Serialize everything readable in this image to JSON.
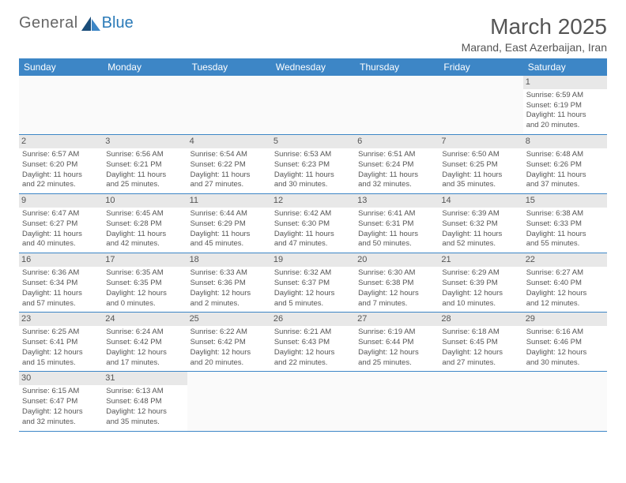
{
  "logo": {
    "text1": "General",
    "text2": "Blue"
  },
  "title": "March 2025",
  "location": "Marand, East Azerbaijan, Iran",
  "colors": {
    "header_bg": "#3d86c6",
    "daynum_bg": "#e8e8e8",
    "text": "#555555",
    "border": "#3d86c6"
  },
  "weekdays": [
    "Sunday",
    "Monday",
    "Tuesday",
    "Wednesday",
    "Thursday",
    "Friday",
    "Saturday"
  ],
  "weeks": [
    [
      {
        "empty": true
      },
      {
        "empty": true
      },
      {
        "empty": true
      },
      {
        "empty": true
      },
      {
        "empty": true
      },
      {
        "empty": true
      },
      {
        "day": "1",
        "sunrise": "Sunrise: 6:59 AM",
        "sunset": "Sunset: 6:19 PM",
        "daylight1": "Daylight: 11 hours",
        "daylight2": "and 20 minutes."
      }
    ],
    [
      {
        "day": "2",
        "sunrise": "Sunrise: 6:57 AM",
        "sunset": "Sunset: 6:20 PM",
        "daylight1": "Daylight: 11 hours",
        "daylight2": "and 22 minutes."
      },
      {
        "day": "3",
        "sunrise": "Sunrise: 6:56 AM",
        "sunset": "Sunset: 6:21 PM",
        "daylight1": "Daylight: 11 hours",
        "daylight2": "and 25 minutes."
      },
      {
        "day": "4",
        "sunrise": "Sunrise: 6:54 AM",
        "sunset": "Sunset: 6:22 PM",
        "daylight1": "Daylight: 11 hours",
        "daylight2": "and 27 minutes."
      },
      {
        "day": "5",
        "sunrise": "Sunrise: 6:53 AM",
        "sunset": "Sunset: 6:23 PM",
        "daylight1": "Daylight: 11 hours",
        "daylight2": "and 30 minutes."
      },
      {
        "day": "6",
        "sunrise": "Sunrise: 6:51 AM",
        "sunset": "Sunset: 6:24 PM",
        "daylight1": "Daylight: 11 hours",
        "daylight2": "and 32 minutes."
      },
      {
        "day": "7",
        "sunrise": "Sunrise: 6:50 AM",
        "sunset": "Sunset: 6:25 PM",
        "daylight1": "Daylight: 11 hours",
        "daylight2": "and 35 minutes."
      },
      {
        "day": "8",
        "sunrise": "Sunrise: 6:48 AM",
        "sunset": "Sunset: 6:26 PM",
        "daylight1": "Daylight: 11 hours",
        "daylight2": "and 37 minutes."
      }
    ],
    [
      {
        "day": "9",
        "sunrise": "Sunrise: 6:47 AM",
        "sunset": "Sunset: 6:27 PM",
        "daylight1": "Daylight: 11 hours",
        "daylight2": "and 40 minutes."
      },
      {
        "day": "10",
        "sunrise": "Sunrise: 6:45 AM",
        "sunset": "Sunset: 6:28 PM",
        "daylight1": "Daylight: 11 hours",
        "daylight2": "and 42 minutes."
      },
      {
        "day": "11",
        "sunrise": "Sunrise: 6:44 AM",
        "sunset": "Sunset: 6:29 PM",
        "daylight1": "Daylight: 11 hours",
        "daylight2": "and 45 minutes."
      },
      {
        "day": "12",
        "sunrise": "Sunrise: 6:42 AM",
        "sunset": "Sunset: 6:30 PM",
        "daylight1": "Daylight: 11 hours",
        "daylight2": "and 47 minutes."
      },
      {
        "day": "13",
        "sunrise": "Sunrise: 6:41 AM",
        "sunset": "Sunset: 6:31 PM",
        "daylight1": "Daylight: 11 hours",
        "daylight2": "and 50 minutes."
      },
      {
        "day": "14",
        "sunrise": "Sunrise: 6:39 AM",
        "sunset": "Sunset: 6:32 PM",
        "daylight1": "Daylight: 11 hours",
        "daylight2": "and 52 minutes."
      },
      {
        "day": "15",
        "sunrise": "Sunrise: 6:38 AM",
        "sunset": "Sunset: 6:33 PM",
        "daylight1": "Daylight: 11 hours",
        "daylight2": "and 55 minutes."
      }
    ],
    [
      {
        "day": "16",
        "sunrise": "Sunrise: 6:36 AM",
        "sunset": "Sunset: 6:34 PM",
        "daylight1": "Daylight: 11 hours",
        "daylight2": "and 57 minutes."
      },
      {
        "day": "17",
        "sunrise": "Sunrise: 6:35 AM",
        "sunset": "Sunset: 6:35 PM",
        "daylight1": "Daylight: 12 hours",
        "daylight2": "and 0 minutes."
      },
      {
        "day": "18",
        "sunrise": "Sunrise: 6:33 AM",
        "sunset": "Sunset: 6:36 PM",
        "daylight1": "Daylight: 12 hours",
        "daylight2": "and 2 minutes."
      },
      {
        "day": "19",
        "sunrise": "Sunrise: 6:32 AM",
        "sunset": "Sunset: 6:37 PM",
        "daylight1": "Daylight: 12 hours",
        "daylight2": "and 5 minutes."
      },
      {
        "day": "20",
        "sunrise": "Sunrise: 6:30 AM",
        "sunset": "Sunset: 6:38 PM",
        "daylight1": "Daylight: 12 hours",
        "daylight2": "and 7 minutes."
      },
      {
        "day": "21",
        "sunrise": "Sunrise: 6:29 AM",
        "sunset": "Sunset: 6:39 PM",
        "daylight1": "Daylight: 12 hours",
        "daylight2": "and 10 minutes."
      },
      {
        "day": "22",
        "sunrise": "Sunrise: 6:27 AM",
        "sunset": "Sunset: 6:40 PM",
        "daylight1": "Daylight: 12 hours",
        "daylight2": "and 12 minutes."
      }
    ],
    [
      {
        "day": "23",
        "sunrise": "Sunrise: 6:25 AM",
        "sunset": "Sunset: 6:41 PM",
        "daylight1": "Daylight: 12 hours",
        "daylight2": "and 15 minutes."
      },
      {
        "day": "24",
        "sunrise": "Sunrise: 6:24 AM",
        "sunset": "Sunset: 6:42 PM",
        "daylight1": "Daylight: 12 hours",
        "daylight2": "and 17 minutes."
      },
      {
        "day": "25",
        "sunrise": "Sunrise: 6:22 AM",
        "sunset": "Sunset: 6:42 PM",
        "daylight1": "Daylight: 12 hours",
        "daylight2": "and 20 minutes."
      },
      {
        "day": "26",
        "sunrise": "Sunrise: 6:21 AM",
        "sunset": "Sunset: 6:43 PM",
        "daylight1": "Daylight: 12 hours",
        "daylight2": "and 22 minutes."
      },
      {
        "day": "27",
        "sunrise": "Sunrise: 6:19 AM",
        "sunset": "Sunset: 6:44 PM",
        "daylight1": "Daylight: 12 hours",
        "daylight2": "and 25 minutes."
      },
      {
        "day": "28",
        "sunrise": "Sunrise: 6:18 AM",
        "sunset": "Sunset: 6:45 PM",
        "daylight1": "Daylight: 12 hours",
        "daylight2": "and 27 minutes."
      },
      {
        "day": "29",
        "sunrise": "Sunrise: 6:16 AM",
        "sunset": "Sunset: 6:46 PM",
        "daylight1": "Daylight: 12 hours",
        "daylight2": "and 30 minutes."
      }
    ],
    [
      {
        "day": "30",
        "sunrise": "Sunrise: 6:15 AM",
        "sunset": "Sunset: 6:47 PM",
        "daylight1": "Daylight: 12 hours",
        "daylight2": "and 32 minutes."
      },
      {
        "day": "31",
        "sunrise": "Sunrise: 6:13 AM",
        "sunset": "Sunset: 6:48 PM",
        "daylight1": "Daylight: 12 hours",
        "daylight2": "and 35 minutes."
      },
      {
        "empty": true
      },
      {
        "empty": true
      },
      {
        "empty": true
      },
      {
        "empty": true
      },
      {
        "empty": true
      }
    ]
  ]
}
